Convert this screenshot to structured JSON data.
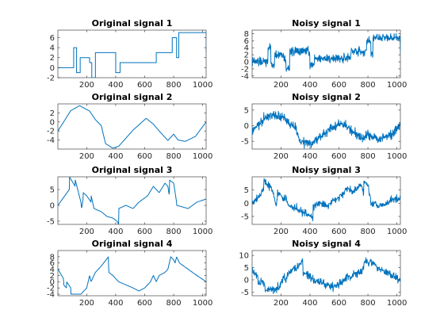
{
  "figure": {
    "background": "#ffffff",
    "line_color": "#0072bd",
    "axis_color": "#262626"
  },
  "chart_data": [
    {
      "type": "line",
      "title": "Original signal 1",
      "xlabel": "",
      "ylabel": "",
      "xlim": [
        1,
        1024
      ],
      "ylim": [
        -2,
        7.5
      ],
      "grid": false,
      "xticks": [
        200,
        400,
        600,
        800,
        1000
      ],
      "yticks": [
        -2,
        0,
        2,
        4,
        6
      ],
      "series": [
        {
          "kind": "blocks",
          "x": [
            1,
            60,
            110,
            130,
            155,
            220,
            235,
            260,
            380,
            400,
            430,
            620,
            680,
            740,
            790,
            820,
            835,
            1024
          ],
          "values": [
            0,
            0,
            4,
            -1,
            2,
            1,
            -2,
            3,
            3,
            -1,
            1,
            1,
            3,
            3,
            6,
            2,
            7,
            3
          ]
        }
      ]
    },
    {
      "type": "line",
      "title": "Noisy signal 1",
      "xlabel": "",
      "ylabel": "",
      "xlim": [
        1,
        1024
      ],
      "ylim": [
        -4.5,
        9
      ],
      "grid": false,
      "xticks": [
        200,
        400,
        600,
        800,
        1000
      ],
      "yticks": [
        -4,
        -2,
        0,
        2,
        4,
        6,
        8
      ],
      "series": [
        {
          "kind": "blocks-noisy",
          "noise": 1.0,
          "x": [
            1,
            60,
            110,
            130,
            155,
            220,
            235,
            260,
            380,
            400,
            430,
            620,
            680,
            740,
            790,
            820,
            835,
            1024
          ],
          "values": [
            0,
            0,
            4,
            -1,
            2,
            1,
            -2,
            3,
            3,
            -1,
            1,
            1,
            3,
            3,
            6,
            2,
            7,
            3
          ]
        }
      ]
    },
    {
      "type": "line",
      "title": "Original signal 2",
      "xlabel": "",
      "ylabel": "",
      "xlim": [
        1,
        1024
      ],
      "ylim": [
        -6,
        4
      ],
      "grid": false,
      "xticks": [
        200,
        400,
        600,
        800,
        1000
      ],
      "yticks": [
        -4,
        -2,
        0,
        2
      ],
      "series": [
        {
          "kind": "sine",
          "x": [
            1,
            90,
            150,
            220,
            260,
            300,
            330,
            380,
            420,
            520,
            610,
            660,
            700,
            760,
            800,
            830,
            880,
            950,
            1024
          ],
          "values": [
            -2,
            2.5,
            3.6,
            2.4,
            0.5,
            -0.8,
            -4.8,
            -5.8,
            -5.4,
            -1.8,
            0.8,
            -0.5,
            -2,
            -4.1,
            -2.7,
            -4,
            -4.3,
            -3.2,
            0
          ]
        }
      ]
    },
    {
      "type": "line",
      "title": "Noisy signal 2",
      "xlabel": "",
      "ylabel": "",
      "xlim": [
        1,
        1024
      ],
      "ylim": [
        -7.5,
        7
      ],
      "grid": false,
      "xticks": [
        200,
        400,
        600,
        800,
        1000
      ],
      "yticks": [
        -5,
        0,
        5
      ],
      "series": [
        {
          "kind": "sine-noisy",
          "noise": 1.2,
          "x": [
            1,
            90,
            150,
            220,
            260,
            300,
            330,
            380,
            420,
            520,
            610,
            660,
            700,
            760,
            800,
            830,
            880,
            950,
            1024
          ],
          "values": [
            -2,
            2.5,
            3.6,
            2.4,
            0.5,
            -0.8,
            -4.8,
            -5.8,
            -5.4,
            -1.8,
            0.8,
            -0.5,
            -2,
            -4.1,
            -2.7,
            -4,
            -4.3,
            -3.2,
            0
          ]
        }
      ]
    },
    {
      "type": "line",
      "title": "Original signal 3",
      "xlabel": "",
      "ylabel": "",
      "xlim": [
        1,
        1024
      ],
      "ylim": [
        -6,
        9
      ],
      "grid": false,
      "xticks": [
        200,
        400,
        600,
        800,
        1000
      ],
      "yticks": [
        -5,
        0,
        5
      ],
      "series": [
        {
          "kind": "piecewise",
          "x": [
            1,
            80,
            81,
            120,
            121,
            160,
            165,
            175,
            176,
            200,
            230,
            231,
            250,
            300,
            340,
            380,
            410,
            420,
            421,
            470,
            520,
            560,
            620,
            660,
            700,
            740,
            760,
            770,
            771,
            800,
            820,
            821,
            860,
            900,
            960,
            1024
          ],
          "values": [
            0,
            5,
            9,
            6,
            8,
            1,
            -1,
            2,
            4,
            3,
            1,
            3,
            -1,
            -2,
            -3.5,
            -4,
            -5,
            -6,
            -1,
            0,
            -1,
            1,
            3,
            6,
            4,
            7,
            6,
            3,
            8,
            7,
            1,
            0,
            -0.5,
            -1,
            1,
            2
          ]
        }
      ]
    },
    {
      "type": "line",
      "title": "Noisy signal 3",
      "xlabel": "",
      "ylabel": "",
      "xlim": [
        1,
        1024
      ],
      "ylim": [
        -8,
        10
      ],
      "grid": false,
      "xticks": [
        200,
        400,
        600,
        800,
        1000
      ],
      "yticks": [
        -5,
        0,
        5
      ],
      "series": [
        {
          "kind": "piecewise-noisy",
          "noise": 1.1,
          "x": [
            1,
            80,
            81,
            120,
            121,
            160,
            165,
            175,
            176,
            200,
            230,
            231,
            250,
            300,
            340,
            380,
            410,
            420,
            421,
            470,
            520,
            560,
            620,
            660,
            700,
            740,
            760,
            770,
            771,
            800,
            820,
            821,
            860,
            900,
            960,
            1024
          ],
          "values": [
            0,
            5,
            9,
            6,
            8,
            1,
            -1,
            2,
            4,
            3,
            1,
            3,
            -1,
            -2,
            -3.5,
            -4,
            -5,
            -6,
            -1,
            0,
            -1,
            1,
            3,
            6,
            4,
            7,
            6,
            3,
            8,
            7,
            1,
            0,
            -0.5,
            -1,
            1,
            2
          ]
        }
      ]
    },
    {
      "type": "line",
      "title": "Original signal 4",
      "xlabel": "",
      "ylabel": "",
      "xlim": [
        1,
        1024
      ],
      "ylim": [
        -4.5,
        10
      ],
      "grid": false,
      "xticks": [
        200,
        400,
        600,
        800,
        1000
      ],
      "yticks": [
        -4,
        -2,
        0,
        2,
        4,
        6,
        8
      ],
      "series": [
        {
          "kind": "piecewise",
          "x": [
            1,
            40,
            41,
            60,
            61,
            90,
            91,
            160,
            200,
            220,
            230,
            260,
            300,
            350,
            352,
            380,
            420,
            470,
            520,
            560,
            600,
            640,
            660,
            680,
            700,
            740,
            760,
            780,
            800,
            810,
            820,
            840,
            900,
            960,
            1024
          ],
          "values": [
            4,
            1,
            -1,
            -2,
            0,
            -2,
            -4,
            -4,
            -2,
            2,
            0,
            3,
            5,
            8,
            3,
            2,
            0,
            -1,
            -2,
            -3,
            -2,
            0,
            2,
            0,
            2,
            3,
            4,
            8,
            7,
            6,
            8,
            6,
            4,
            2,
            0
          ]
        }
      ]
    },
    {
      "type": "line",
      "title": "Noisy signal 4",
      "xlabel": "",
      "ylabel": "",
      "xlim": [
        1,
        1024
      ],
      "ylim": [
        -6.5,
        12
      ],
      "grid": false,
      "xticks": [
        200,
        400,
        600,
        800,
        1000
      ],
      "yticks": [
        -5,
        0,
        5,
        10
      ],
      "series": [
        {
          "kind": "piecewise-noisy",
          "noise": 1.3,
          "x": [
            1,
            40,
            41,
            60,
            61,
            90,
            91,
            160,
            200,
            220,
            230,
            260,
            300,
            350,
            352,
            380,
            420,
            470,
            520,
            560,
            600,
            640,
            660,
            680,
            700,
            740,
            760,
            780,
            800,
            810,
            820,
            840,
            900,
            960,
            1024
          ],
          "values": [
            4,
            1,
            -1,
            -2,
            0,
            -2,
            -4,
            -4,
            -2,
            2,
            0,
            3,
            5,
            8,
            3,
            2,
            0,
            -1,
            -2,
            -3,
            -2,
            0,
            2,
            0,
            2,
            3,
            4,
            8,
            7,
            6,
            8,
            6,
            4,
            2,
            0
          ]
        }
      ]
    }
  ]
}
